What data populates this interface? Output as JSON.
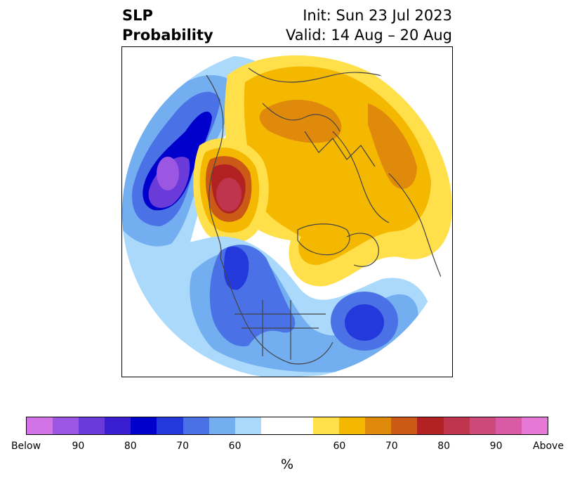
{
  "title": {
    "left_line1": "SLP",
    "left_line2": "Probability",
    "right_line1": "Init: Sun 23 Jul 2023",
    "right_line2": "Valid: 14 Aug – 20 Aug"
  },
  "colorbar": {
    "unit": "%",
    "colors": [
      "#d274e8",
      "#9c57e2",
      "#6a3bd9",
      "#3a1fd0",
      "#0000cd",
      "#2339dc",
      "#4a72e6",
      "#72aef0",
      "#aad9fb",
      "#ffffff",
      "#ffffff",
      "#ffe04a",
      "#f5b800",
      "#e08a0c",
      "#cc5a17",
      "#b22222",
      "#c0354e",
      "#cc4a7a",
      "#d95aa5",
      "#e678d7"
    ],
    "tick_labels": [
      "Below",
      "90",
      "80",
      "70",
      "60",
      "60",
      "70",
      "80",
      "90",
      "Above"
    ]
  }
}
